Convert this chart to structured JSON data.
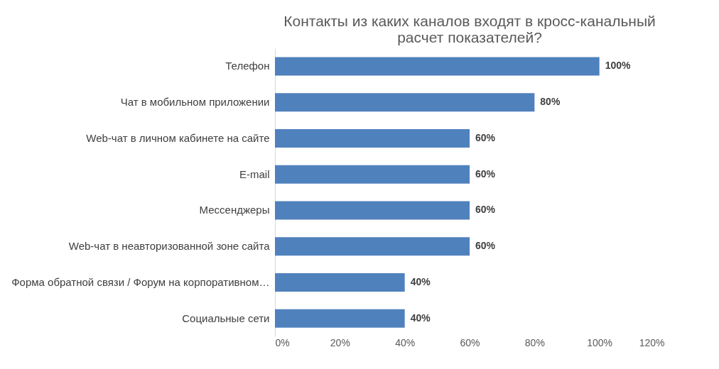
{
  "chart_data": {
    "type": "bar",
    "orientation": "horizontal",
    "title": "Контакты из каких каналов входят в кросс-канальный расчет показателей?",
    "categories": [
      "Телефон",
      "Чат в мобильном приложении",
      "Web-чат в личном кабинете на сайте",
      "E-mail",
      "Мессенджеры",
      "Web-чат в неавторизованной зоне сайта",
      "Форма обратной связи / Форум на корпоративном…",
      "Социальные сети"
    ],
    "values": [
      100,
      80,
      60,
      60,
      60,
      60,
      40,
      40
    ],
    "value_labels": [
      "100%",
      "80%",
      "60%",
      "60%",
      "60%",
      "60%",
      "40%",
      "40%"
    ],
    "color": "#4f81bd",
    "xlim": [
      0,
      120
    ],
    "xticks": [
      {
        "value": 0,
        "label": "0%"
      },
      {
        "value": 20,
        "label": "20%"
      },
      {
        "value": 40,
        "label": "40%"
      },
      {
        "value": 60,
        "label": "60%"
      },
      {
        "value": 80,
        "label": "80%"
      },
      {
        "value": 100,
        "label": "100%"
      },
      {
        "value": 120,
        "label": "120%"
      }
    ],
    "grid": false
  }
}
